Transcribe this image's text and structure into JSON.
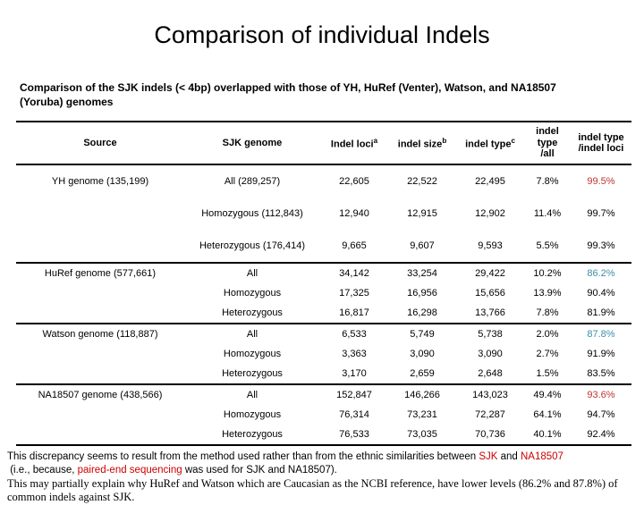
{
  "slide": {
    "title": "Comparison of individual Indels",
    "subtitle": "Comparison of the SJK indels (< 4bp) overlapped with those of YH, HuRef (Venter), Watson, and NA18507 (Yoruba) genomes"
  },
  "colors": {
    "red": "#bf3434",
    "teal": "#3a8fa8",
    "footer_red": "#cc0000",
    "text": "#000000"
  },
  "table": {
    "columns": [
      {
        "label": "Source",
        "sup": ""
      },
      {
        "label": "SJK genome",
        "sup": ""
      },
      {
        "label": "Indel loci",
        "sup": "a"
      },
      {
        "label": "indel size",
        "sup": "b"
      },
      {
        "label": "indel type",
        "sup": "c"
      },
      {
        "label": "indel type",
        "label2": "/all",
        "sup": ""
      },
      {
        "label": "indel type",
        "label2": "/indel loci",
        "sup": ""
      }
    ],
    "sections": [
      {
        "source": "YH genome (135,199)",
        "rows": [
          {
            "sjk": "All (289,257)",
            "loci": "22,605",
            "size": "22,522",
            "type": "22,495",
            "type_all": "7.8%",
            "type_loci": "99.5%",
            "highlight": "red"
          },
          {
            "sjk": "Homozygous (112,843)",
            "loci": "12,940",
            "size": "12,915",
            "type": "12,902",
            "type_all": "11.4%",
            "type_loci": "99.7%",
            "highlight": null
          },
          {
            "sjk": "Heterozygous (176,414)",
            "loci": "9,665",
            "size": "9,607",
            "type": "9,593",
            "type_all": "5.5%",
            "type_loci": "99.3%",
            "highlight": null
          }
        ]
      },
      {
        "source": "HuRef genome (577,661)",
        "rows": [
          {
            "sjk": "All",
            "loci": "34,142",
            "size": "33,254",
            "type": "29,422",
            "type_all": "10.2%",
            "type_loci": "86.2%",
            "highlight": "teal"
          },
          {
            "sjk": "Homozygous",
            "loci": "17,325",
            "size": "16,956",
            "type": "15,656",
            "type_all": "13.9%",
            "type_loci": "90.4%",
            "highlight": null
          },
          {
            "sjk": "Heterozygous",
            "loci": "16,817",
            "size": "16,298",
            "type": "13,766",
            "type_all": "7.8%",
            "type_loci": "81.9%",
            "highlight": null
          }
        ]
      },
      {
        "source": "Watson genome (118,887)",
        "rows": [
          {
            "sjk": "All",
            "loci": "6,533",
            "size": "5,749",
            "type": "5,738",
            "type_all": "2.0%",
            "type_loci": "87.8%",
            "highlight": "teal"
          },
          {
            "sjk": "Homozygous",
            "loci": "3,363",
            "size": "3,090",
            "type": "3,090",
            "type_all": "2.7%",
            "type_loci": "91.9%",
            "highlight": null
          },
          {
            "sjk": "Heterozygous",
            "loci": "3,170",
            "size": "2,659",
            "type": "2,648",
            "type_all": "1.5%",
            "type_loci": "83.5%",
            "highlight": null
          }
        ]
      },
      {
        "source": "NA18507 genome (438,566)",
        "rows": [
          {
            "sjk": "All",
            "loci": "152,847",
            "size": "146,266",
            "type": "143,023",
            "type_all": "49.4%",
            "type_loci": "93.6%",
            "highlight": "red"
          },
          {
            "sjk": "Homozygous",
            "loci": "76,314",
            "size": "73,231",
            "type": "72,287",
            "type_all": "64.1%",
            "type_loci": "94.7%",
            "highlight": null
          },
          {
            "sjk": "Heterozygous",
            "loci": "76,533",
            "size": "73,035",
            "type": "70,736",
            "type_all": "40.1%",
            "type_loci": "92.4%",
            "highlight": null
          }
        ]
      }
    ]
  },
  "footer": {
    "lines": [
      {
        "serif": false,
        "segments": [
          {
            "text": "This discrepancy seems to result from the method used rather than from the ethnic similarities between ",
            "color": null
          },
          {
            "text": "SJK",
            "color": "footer_red"
          },
          {
            "text": " and ",
            "color": null
          },
          {
            "text": "NA18507",
            "color": "footer_red"
          }
        ]
      },
      {
        "serif": false,
        "segments": [
          {
            "text": " (i.e., because, ",
            "color": null
          },
          {
            "text": "paired-end sequencing",
            "color": "footer_red"
          },
          {
            "text": " was used for SJK and NA18507).",
            "color": null
          }
        ]
      },
      {
        "serif": true,
        "segments": [
          {
            "text": "This may partially explain why HuRef and Watson which are Caucasian as the NCBI reference, have lower levels (86.2% and 87.8%) of common indels against SJK.",
            "color": null
          }
        ]
      }
    ]
  }
}
